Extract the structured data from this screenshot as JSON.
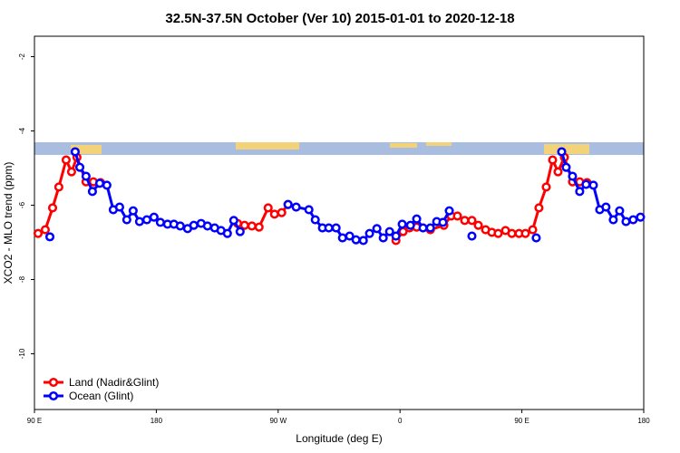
{
  "chart_data": {
    "type": "line",
    "title": "32.5N-37.5N October (Ver 10)   2015-01-01 to 2020-12-18",
    "x_label": "Longitude (deg E)",
    "y_label": "XCO2 - MLO trend (ppm)",
    "xlim": [
      90,
      540
    ],
    "ylim": [
      -11.5,
      -1.45
    ],
    "xticks": [
      {
        "value": 90,
        "label": "90 E"
      },
      180,
      {
        "value": 270,
        "label": "90 W"
      },
      {
        "value": 360,
        "label": "0"
      },
      {
        "value": 450,
        "label": "90 E"
      },
      {
        "value": 540,
        "label": "180"
      }
    ],
    "yticks": [
      -2,
      -4,
      -6,
      -8,
      -10
    ],
    "legend": "bottom-left",
    "series": [
      {
        "name": "Land (Nadir&Glint)",
        "color": "#ff0000",
        "x": [
          92.7,
          98,
          103.4,
          108,
          113.4,
          117.4,
          121.4,
          128.1,
          133.5,
          138.8,
          190,
          240,
          245.2,
          250.6,
          255.9,
          262.6,
          267.3,
          272.6,
          277.3,
          320,
          357,
          362.3,
          367,
          372.3,
          382.4,
          392.4,
          397.8,
          402.4,
          407.8,
          413.1,
          417.8,
          423.2,
          427.8,
          432.5,
          437.9,
          442.6,
          447.9,
          452.6,
          458,
          462.6,
          468,
          472.7,
          476.7,
          481.4,
          487.4,
          492.7,
          498.1
        ],
        "values": [
          -6.76,
          -6.66,
          -6.07,
          -5.51,
          -4.78,
          -5.1,
          -4.71,
          -5.37,
          -5.37,
          -5.39,
          null,
          -6.49,
          -6.54,
          -6.56,
          -6.59,
          -6.07,
          -6.24,
          -6.2,
          -5.98,
          null,
          -6.95,
          -6.71,
          -6.61,
          -6.59,
          -6.66,
          -6.54,
          -6.29,
          -6.29,
          -6.41,
          -6.41,
          -6.54,
          -6.66,
          -6.73,
          -6.76,
          -6.68,
          -6.76,
          -6.76,
          -6.76,
          -6.66,
          -6.07,
          -5.51,
          -4.78,
          -5.1,
          -4.71,
          -5.37,
          -5.37,
          -5.39
        ]
      },
      {
        "name": "Ocean (Glint)",
        "color": "#0000ff",
        "x": [
          101.4,
          110,
          120.1,
          123.5,
          128.1,
          132.8,
          138.2,
          143.5,
          148.2,
          152.9,
          158.2,
          162.9,
          167.6,
          173,
          178.3,
          183,
          188.3,
          193,
          197.7,
          203.1,
          207.7,
          213.1,
          217.8,
          223.1,
          227.8,
          232.5,
          237.2,
          241.9,
          260,
          277.3,
          283.3,
          292.7,
          297.4,
          302.7,
          307.4,
          312.8,
          317.5,
          322.8,
          327.5,
          332.9,
          337.5,
          342.9,
          347.6,
          352.3,
          357,
          361.6,
          367.7,
          372.3,
          377,
          382.4,
          387.1,
          391.7,
          396.4,
          405,
          413.1,
          440,
          460.6,
          470,
          479.4,
          482.7,
          487.4,
          492.7,
          497.4,
          502.8,
          507.5,
          512.1,
          517.5,
          522.2,
          526.9,
          532.2,
          537.6
        ],
        "values": [
          -6.85,
          null,
          -4.56,
          -4.98,
          -5.22,
          -5.63,
          -5.41,
          -5.46,
          -6.12,
          -6.05,
          -6.39,
          -6.15,
          -6.44,
          -6.39,
          -6.32,
          -6.46,
          -6.51,
          -6.51,
          -6.56,
          -6.63,
          -6.54,
          -6.49,
          -6.56,
          -6.61,
          -6.68,
          -6.76,
          -6.41,
          -6.71,
          null,
          -5.98,
          -6.05,
          -6.12,
          -6.39,
          -6.61,
          -6.61,
          -6.61,
          -6.88,
          -6.83,
          -6.93,
          -6.95,
          -6.76,
          -6.63,
          -6.88,
          -6.71,
          -6.83,
          -6.51,
          -6.54,
          -6.37,
          -6.61,
          -6.61,
          -6.44,
          -6.46,
          -6.15,
          null,
          -6.83,
          null,
          -6.88,
          null,
          -4.56,
          -4.98,
          -5.22,
          -5.63,
          -5.44,
          -5.46,
          -6.12,
          -6.05,
          -6.39,
          -6.15,
          -6.44,
          -6.39,
          -6.32
        ]
      }
    ]
  }
}
